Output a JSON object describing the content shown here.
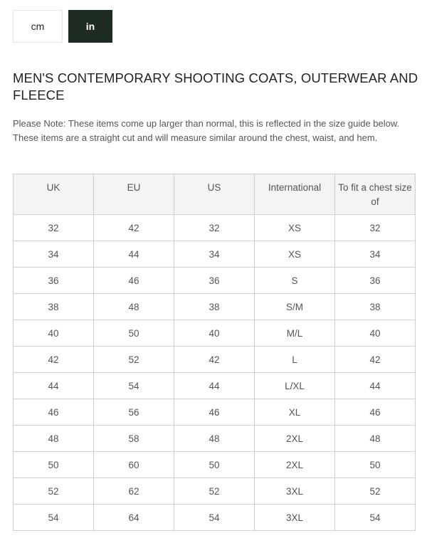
{
  "unit_toggle": {
    "cm_label": "cm",
    "in_label": "in",
    "selected": "in"
  },
  "title": "MEN'S CONTEMPORARY SHOOTING COATS, OUTERWEAR AND FLEECE",
  "note": "Please Note: These items come up larger than normal, this is reflected in the size guide below. These items are a straight cut and will measure similar around the chest, waist, and hem.",
  "table": {
    "headers": [
      "UK",
      "EU",
      "US",
      "International",
      "To fit a chest size of"
    ],
    "rows": [
      [
        "32",
        "42",
        "32",
        "XS",
        "32"
      ],
      [
        "34",
        "44",
        "34",
        "XS",
        "34"
      ],
      [
        "36",
        "46",
        "36",
        "S",
        "36"
      ],
      [
        "38",
        "48",
        "38",
        "S/M",
        "38"
      ],
      [
        "40",
        "50",
        "40",
        "M/L",
        "40"
      ],
      [
        "42",
        "52",
        "42",
        "L",
        "42"
      ],
      [
        "44",
        "54",
        "44",
        "L/XL",
        "44"
      ],
      [
        "46",
        "56",
        "46",
        "XL",
        "46"
      ],
      [
        "48",
        "58",
        "48",
        "2XL",
        "48"
      ],
      [
        "50",
        "60",
        "50",
        "2XL",
        "50"
      ],
      [
        "52",
        "62",
        "52",
        "3XL",
        "52"
      ],
      [
        "54",
        "64",
        "54",
        "3XL",
        "54"
      ]
    ]
  },
  "colors": {
    "active_button_bg": "#1d2b22",
    "header_bg": "#f4f4f4",
    "border": "#cfcfcf"
  }
}
